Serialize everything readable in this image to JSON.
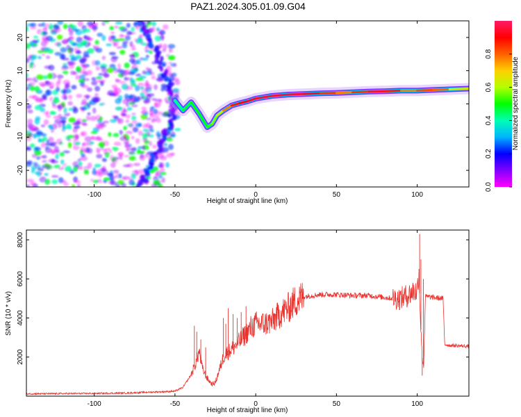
{
  "title": "PAZ1.2024.305.01.09.G04",
  "chart_data": [
    {
      "type": "heatmap",
      "xlabel": "Height of straight line (km)",
      "ylabel": "Frequency (Hz)",
      "xlim": [
        -142,
        132
      ],
      "ylim": [
        -25,
        25
      ],
      "xticks": [
        -100,
        -50,
        0,
        50,
        100
      ],
      "yticks": [
        -20,
        -10,
        0,
        10,
        20
      ],
      "grid": false,
      "colorbar": {
        "label": "Normalized spectral amplitude",
        "range": [
          0.0,
          1.0
        ],
        "ticks": [
          "0.0",
          "0.2",
          "0.4",
          "0.6",
          "0.8"
        ],
        "colormap": [
          "#ff00ff",
          "#8000ff",
          "#0000ff",
          "#00b4ff",
          "#00ffb4",
          "#00ff00",
          "#b4ff00",
          "#ffd000",
          "#ff6000",
          "#ff0000",
          "#ff1a66"
        ]
      },
      "noise_region_x": [
        -142,
        -48
      ],
      "ridge": {
        "x": [
          -50,
          -45,
          -40,
          -35,
          -30,
          -27,
          -24,
          -20,
          -15,
          -10,
          -5,
          0,
          10,
          20,
          30,
          40,
          50,
          60,
          70,
          80,
          90,
          100,
          110,
          120,
          132
        ],
        "freq": [
          1.0,
          -2.0,
          0.5,
          -3.0,
          -7.0,
          -6.0,
          -3.5,
          -2.0,
          -0.5,
          0.2,
          0.8,
          1.6,
          2.4,
          2.8,
          3.0,
          3.2,
          3.3,
          3.5,
          3.7,
          3.8,
          4.0,
          4.0,
          4.2,
          4.4,
          4.6
        ],
        "amplitude": [
          0.4,
          0.45,
          0.5,
          0.5,
          0.5,
          0.55,
          0.6,
          0.7,
          0.85,
          0.9,
          0.92,
          0.95,
          0.95,
          0.95,
          0.95,
          0.9,
          0.8,
          0.75,
          0.95,
          0.95,
          0.8,
          0.75,
          0.9,
          0.7,
          0.6
        ]
      }
    },
    {
      "type": "line",
      "xlabel": "Height of straight line (km)",
      "ylabel": "SNR (10 * v/v)",
      "xlim": [
        -142,
        132
      ],
      "ylim": [
        0,
        8500
      ],
      "xticks": [
        -100,
        -50,
        0,
        50,
        100
      ],
      "yticks": [
        2000,
        4000,
        6000,
        8000
      ],
      "grid": false,
      "color": "#e8332f",
      "series": [
        {
          "x": [
            -142,
            -120,
            -100,
            -80,
            -60,
            -50,
            -45,
            -40,
            -37,
            -35,
            -33,
            -30,
            -27,
            -25,
            -20,
            -18,
            -15,
            -10,
            -5,
            0,
            5,
            10,
            15,
            20,
            25,
            30,
            40,
            50,
            60,
            70,
            80,
            85,
            90,
            95,
            98,
            100,
            101,
            102,
            103,
            104,
            105,
            110,
            115,
            116,
            117,
            120,
            125,
            132
          ],
          "y": [
            120,
            130,
            140,
            160,
            220,
            250,
            450,
            1100,
            1700,
            2300,
            1400,
            900,
            600,
            700,
            2000,
            2200,
            2400,
            2800,
            3300,
            3700,
            3700,
            3800,
            4200,
            4500,
            4900,
            5100,
            5200,
            5200,
            5150,
            5150,
            5050,
            5000,
            5000,
            5200,
            5400,
            5300,
            6500,
            4000,
            2000,
            1500,
            5100,
            5050,
            5000,
            5000,
            2650,
            2600,
            2580,
            2550
          ]
        },
        {
          "name_hidden": "",
          "x": [
            -38,
            -36.5,
            -34,
            -31,
            -20,
            -18.5,
            -17,
            -14,
            -11.5,
            -9,
            -6,
            -3,
            101.5,
            102.3,
            103.1,
            103.8
          ],
          "y": [
            3600,
            3300,
            2900,
            2500,
            4000,
            3700,
            4500,
            4200,
            4000,
            4300,
            4600,
            4100,
            8300,
            7000,
            1050,
            6000
          ]
        }
      ]
    }
  ]
}
